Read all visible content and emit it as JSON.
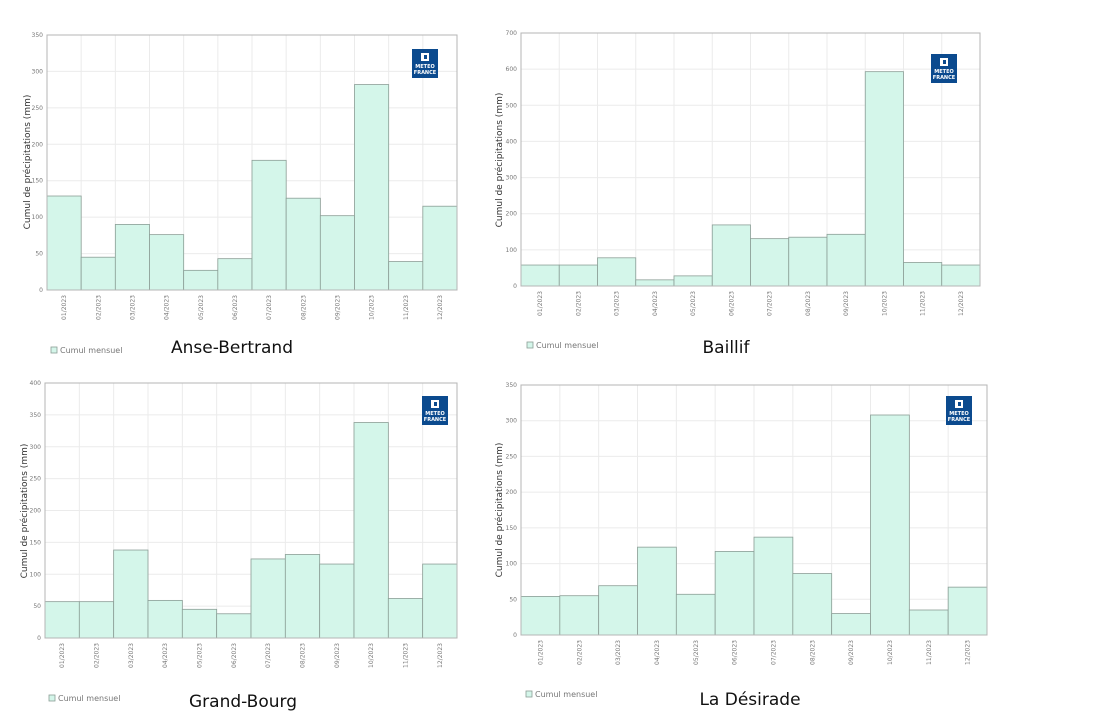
{
  "chart_data": [
    {
      "type": "bar",
      "title": "Anse-Bertrand",
      "ylabel": "Cumul de précipitations (mm)",
      "ylim": [
        0,
        350
      ],
      "yticks": [
        0,
        50,
        100,
        150,
        200,
        250,
        300,
        350
      ],
      "categories": [
        "01/2023",
        "02/2023",
        "03/2023",
        "04/2023",
        "05/2023",
        "06/2023",
        "07/2023",
        "08/2023",
        "09/2023",
        "10/2023",
        "11/2023",
        "12/2023"
      ],
      "series": [
        {
          "name": "Cumul mensuel",
          "values": [
            129,
            45,
            90,
            76,
            27,
            43,
            178,
            126,
            102,
            282,
            39,
            115
          ]
        }
      ],
      "grid": true,
      "legend": "bottom-left",
      "logo": [
        "METEO",
        "FRANCE"
      ]
    },
    {
      "type": "bar",
      "title": "Baillif",
      "ylabel": "Cumul de précipitations (mm)",
      "ylim": [
        0,
        700
      ],
      "yticks": [
        0,
        100,
        200,
        300,
        400,
        500,
        600,
        700
      ],
      "categories": [
        "01/2023",
        "02/2023",
        "03/2023",
        "04/2023",
        "05/2023",
        "06/2023",
        "07/2023",
        "08/2023",
        "09/2023",
        "10/2023",
        "11/2023",
        "12/2023"
      ],
      "series": [
        {
          "name": "Cumul mensuel",
          "values": [
            58,
            58,
            78,
            17,
            28,
            169,
            131,
            135,
            143,
            593,
            65,
            58
          ]
        }
      ],
      "grid": true,
      "legend": "bottom-left",
      "logo": [
        "METEO",
        "FRANCE"
      ]
    },
    {
      "type": "bar",
      "title": "Grand-Bourg",
      "ylabel": "Cumul de précipitations (mm)",
      "ylim": [
        0,
        400
      ],
      "yticks": [
        0,
        50,
        100,
        150,
        200,
        250,
        300,
        350,
        400
      ],
      "categories": [
        "01/2023",
        "02/2023",
        "03/2023",
        "04/2023",
        "05/2023",
        "06/2023",
        "07/2023",
        "08/2023",
        "09/2023",
        "10/2023",
        "11/2023",
        "12/2023"
      ],
      "series": [
        {
          "name": "Cumul mensuel",
          "values": [
            57,
            57,
            138,
            59,
            45,
            38,
            124,
            131,
            116,
            338,
            62,
            116
          ]
        }
      ],
      "grid": true,
      "legend": "bottom-left",
      "logo": [
        "METEO",
        "FRANCE"
      ]
    },
    {
      "type": "bar",
      "title": "La Désirade",
      "ylabel": "Cumul de précipitations (mm)",
      "ylim": [
        0,
        350
      ],
      "yticks": [
        0,
        50,
        100,
        150,
        200,
        250,
        300,
        350
      ],
      "categories": [
        "01/2023",
        "02/2023",
        "03/2023",
        "04/2023",
        "05/2023",
        "06/2023",
        "07/2023",
        "08/2023",
        "09/2023",
        "10/2023",
        "11/2023",
        "12/2023"
      ],
      "series": [
        {
          "name": "Cumul mensuel",
          "values": [
            54,
            55,
            69,
            123,
            57,
            117,
            137,
            86,
            30,
            308,
            35,
            67
          ]
        }
      ],
      "grid": true,
      "legend": "bottom-left",
      "logo": [
        "METEO",
        "FRANCE"
      ]
    }
  ]
}
